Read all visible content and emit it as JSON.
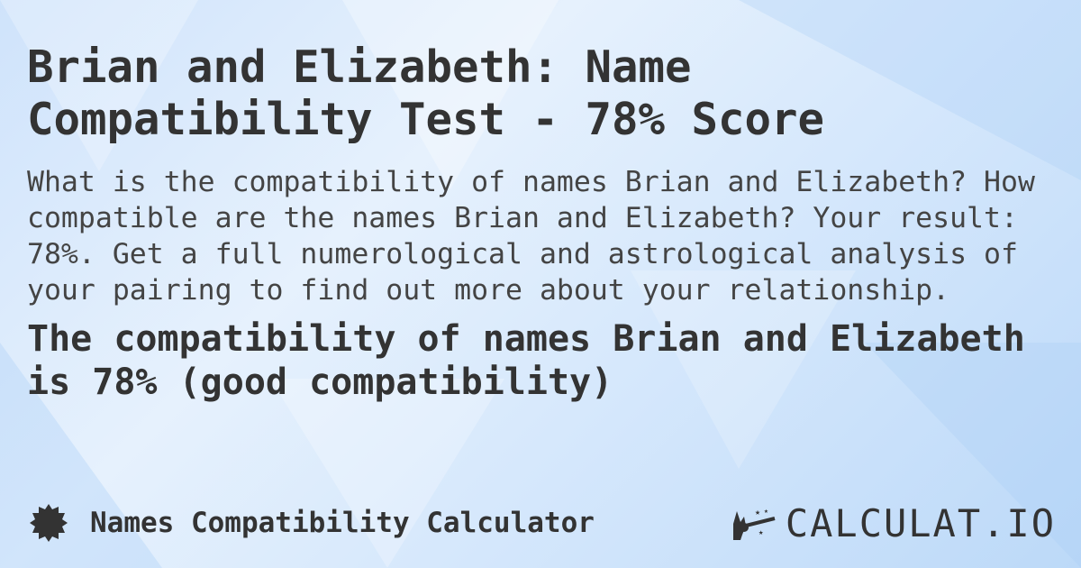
{
  "title": "Brian and Elizabeth: Name Compatibility Test - 78% Score",
  "description": "What is the compatibility of names Brian and Elizabeth? How compatible are the names Brian and Elizabeth? Your result: 78%. Get a full numerological and astrological analysis of your pairing to find out more about your relationship.",
  "result": "The compatibility of names Brian and Elizabeth is 78% (good compatibility)",
  "footer": {
    "icon": "badge-icon",
    "label": "Names Compatibility Calculator"
  },
  "logo": {
    "icon": "magic-wand-hand-icon",
    "text": "CALCULAT.IO"
  },
  "colors": {
    "text": "#333333",
    "background": "#d6e8fc"
  }
}
